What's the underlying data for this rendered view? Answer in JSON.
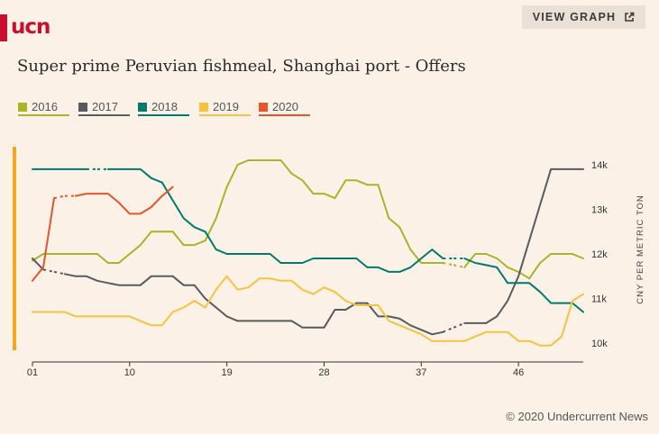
{
  "brand": {
    "logo_text": "ucn",
    "color": "#c8102e"
  },
  "header": {
    "view_graph_label": "VIEW GRAPH",
    "view_graph_icon": "external-link-icon"
  },
  "title": "Super prime Peruvian fishmeal, Shanghai port - Offers",
  "credit": "© 2020 Undercurrent News",
  "chart_data": {
    "type": "line",
    "title": "Super prime Peruvian fishmeal, Shanghai port - Offers",
    "xlabel": "",
    "ylabel": "CNY PER METRIC TON",
    "x_tick_labels": [
      "01",
      "10",
      "19",
      "28",
      "37",
      "46"
    ],
    "x_tick_values": [
      1,
      10,
      19,
      28,
      37,
      46
    ],
    "xlim": [
      1,
      52
    ],
    "y_tick_labels": [
      "10k",
      "11k",
      "12k",
      "13k",
      "14k"
    ],
    "y_tick_values": [
      10000,
      11000,
      12000,
      13000,
      14000
    ],
    "ylim": [
      9600,
      14200
    ],
    "y_axis_position": "right",
    "legend_position": "top-left",
    "grid": false,
    "series": [
      {
        "name": "2016",
        "color": "#a6b52b",
        "points": [
          [
            1,
            11850
          ],
          [
            2,
            12000
          ],
          [
            3,
            12000
          ],
          [
            4,
            12000
          ],
          [
            5,
            12000
          ],
          [
            6,
            12000
          ],
          [
            7,
            12000
          ],
          [
            8,
            11800
          ],
          [
            9,
            11800
          ],
          [
            10,
            12000
          ],
          [
            11,
            12200
          ],
          [
            12,
            12500
          ],
          [
            13,
            12500
          ],
          [
            14,
            12500
          ],
          [
            15,
            12200
          ],
          [
            16,
            12200
          ],
          [
            17,
            12300
          ],
          [
            18,
            12800
          ],
          [
            19,
            13500
          ],
          [
            20,
            14000
          ],
          [
            21,
            14100
          ],
          [
            22,
            14100
          ],
          [
            23,
            14100
          ],
          [
            24,
            14100
          ],
          [
            25,
            13800
          ],
          [
            26,
            13650
          ],
          [
            27,
            13350
          ],
          [
            28,
            13350
          ],
          [
            29,
            13250
          ],
          [
            30,
            13650
          ],
          [
            31,
            13650
          ],
          [
            32,
            13550
          ],
          [
            33,
            13550
          ],
          [
            34,
            12800
          ],
          [
            35,
            12600
          ],
          [
            36,
            12100
          ],
          [
            37,
            11800
          ],
          [
            38,
            11800
          ],
          [
            39,
            11800
          ],
          [
            40,
            11750
          ],
          [
            41,
            11700
          ],
          [
            42,
            12000
          ],
          [
            43,
            12000
          ],
          [
            44,
            11900
          ],
          [
            45,
            11700
          ],
          [
            46,
            11600
          ],
          [
            47,
            11450
          ],
          [
            48,
            11800
          ],
          [
            49,
            12000
          ],
          [
            50,
            12000
          ],
          [
            51,
            12000
          ],
          [
            52,
            11900
          ]
        ],
        "gaps": [
          [
            39,
            41
          ]
        ]
      },
      {
        "name": "2017",
        "color": "#555c5f",
        "points": [
          [
            1,
            11900
          ],
          [
            2,
            11650
          ],
          [
            3,
            11600
          ],
          [
            4,
            11550
          ],
          [
            5,
            11500
          ],
          [
            6,
            11500
          ],
          [
            7,
            11400
          ],
          [
            8,
            11350
          ],
          [
            9,
            11300
          ],
          [
            10,
            11300
          ],
          [
            11,
            11300
          ],
          [
            12,
            11500
          ],
          [
            13,
            11500
          ],
          [
            14,
            11500
          ],
          [
            15,
            11300
          ],
          [
            16,
            11300
          ],
          [
            17,
            11000
          ],
          [
            18,
            10800
          ],
          [
            19,
            10600
          ],
          [
            20,
            10500
          ],
          [
            21,
            10500
          ],
          [
            22,
            10500
          ],
          [
            23,
            10500
          ],
          [
            24,
            10500
          ],
          [
            25,
            10500
          ],
          [
            26,
            10350
          ],
          [
            27,
            10350
          ],
          [
            28,
            10350
          ],
          [
            29,
            10750
          ],
          [
            30,
            10750
          ],
          [
            31,
            10900
          ],
          [
            32,
            10900
          ],
          [
            33,
            10600
          ],
          [
            34,
            10600
          ],
          [
            35,
            10550
          ],
          [
            36,
            10400
          ],
          [
            37,
            10300
          ],
          [
            38,
            10200
          ],
          [
            39,
            10250
          ],
          [
            40,
            10350
          ],
          [
            41,
            10450
          ],
          [
            42,
            10450
          ],
          [
            43,
            10450
          ],
          [
            44,
            10600
          ],
          [
            45,
            10950
          ],
          [
            46,
            11500
          ],
          [
            47,
            12300
          ],
          [
            48,
            13100
          ],
          [
            49,
            13900
          ],
          [
            50,
            13900
          ],
          [
            51,
            13900
          ],
          [
            52,
            13900
          ]
        ],
        "gaps": [
          [
            2,
            4
          ],
          [
            39,
            41
          ]
        ]
      },
      {
        "name": "2018",
        "color": "#007a6c",
        "points": [
          [
            1,
            13900
          ],
          [
            2,
            13900
          ],
          [
            3,
            13900
          ],
          [
            4,
            13900
          ],
          [
            5,
            13900
          ],
          [
            6,
            13900
          ],
          [
            7,
            13900
          ],
          [
            8,
            13900
          ],
          [
            9,
            13900
          ],
          [
            10,
            13900
          ],
          [
            11,
            13900
          ],
          [
            12,
            13700
          ],
          [
            13,
            13600
          ],
          [
            14,
            13200
          ],
          [
            15,
            12800
          ],
          [
            16,
            12600
          ],
          [
            17,
            12500
          ],
          [
            18,
            12100
          ],
          [
            19,
            12000
          ],
          [
            20,
            12000
          ],
          [
            21,
            12000
          ],
          [
            22,
            12000
          ],
          [
            23,
            12000
          ],
          [
            24,
            11800
          ],
          [
            25,
            11800
          ],
          [
            26,
            11800
          ],
          [
            27,
            11900
          ],
          [
            28,
            11900
          ],
          [
            29,
            11900
          ],
          [
            30,
            11900
          ],
          [
            31,
            11900
          ],
          [
            32,
            11700
          ],
          [
            33,
            11700
          ],
          [
            34,
            11600
          ],
          [
            35,
            11600
          ],
          [
            36,
            11700
          ],
          [
            37,
            11900
          ],
          [
            38,
            12100
          ],
          [
            39,
            11900
          ],
          [
            40,
            11900
          ],
          [
            41,
            11900
          ],
          [
            42,
            11800
          ],
          [
            43,
            11750
          ],
          [
            44,
            11700
          ],
          [
            45,
            11350
          ],
          [
            46,
            11350
          ],
          [
            47,
            11350
          ],
          [
            48,
            11150
          ],
          [
            49,
            10900
          ],
          [
            50,
            10900
          ],
          [
            51,
            10900
          ],
          [
            52,
            10700
          ]
        ],
        "gaps": [
          [
            6,
            8
          ],
          [
            39,
            41
          ]
        ]
      },
      {
        "name": "2019",
        "color": "#f5c342",
        "points": [
          [
            1,
            10700
          ],
          [
            2,
            10700
          ],
          [
            3,
            10700
          ],
          [
            4,
            10700
          ],
          [
            5,
            10600
          ],
          [
            6,
            10600
          ],
          [
            7,
            10600
          ],
          [
            8,
            10600
          ],
          [
            9,
            10600
          ],
          [
            10,
            10600
          ],
          [
            11,
            10500
          ],
          [
            12,
            10400
          ],
          [
            13,
            10400
          ],
          [
            14,
            10700
          ],
          [
            15,
            10800
          ],
          [
            16,
            10950
          ],
          [
            17,
            10800
          ],
          [
            18,
            11200
          ],
          [
            19,
            11500
          ],
          [
            20,
            11200
          ],
          [
            21,
            11250
          ],
          [
            22,
            11450
          ],
          [
            23,
            11450
          ],
          [
            24,
            11400
          ],
          [
            25,
            11400
          ],
          [
            26,
            11200
          ],
          [
            27,
            11100
          ],
          [
            28,
            11250
          ],
          [
            29,
            11150
          ],
          [
            30,
            10950
          ],
          [
            31,
            10850
          ],
          [
            32,
            10850
          ],
          [
            33,
            10850
          ],
          [
            34,
            10500
          ],
          [
            35,
            10400
          ],
          [
            36,
            10300
          ],
          [
            37,
            10200
          ],
          [
            38,
            10050
          ],
          [
            39,
            10050
          ],
          [
            40,
            10050
          ],
          [
            41,
            10050
          ],
          [
            42,
            10150
          ],
          [
            43,
            10250
          ],
          [
            44,
            10250
          ],
          [
            45,
            10250
          ],
          [
            46,
            10050
          ],
          [
            47,
            10050
          ],
          [
            48,
            9950
          ],
          [
            49,
            9950
          ],
          [
            50,
            10150
          ],
          [
            51,
            10950
          ],
          [
            52,
            11100
          ]
        ],
        "gaps": []
      },
      {
        "name": "2020",
        "color": "#e2562b",
        "points": [
          [
            1,
            11400
          ],
          [
            2,
            11700
          ],
          [
            3,
            13250
          ],
          [
            4,
            13300
          ],
          [
            5,
            13300
          ],
          [
            6,
            13350
          ],
          [
            7,
            13350
          ],
          [
            8,
            13350
          ],
          [
            9,
            13150
          ],
          [
            10,
            12900
          ],
          [
            11,
            12900
          ],
          [
            12,
            13050
          ],
          [
            13,
            13300
          ],
          [
            14,
            13500
          ]
        ],
        "gaps": [
          [
            3,
            5
          ]
        ]
      }
    ]
  }
}
